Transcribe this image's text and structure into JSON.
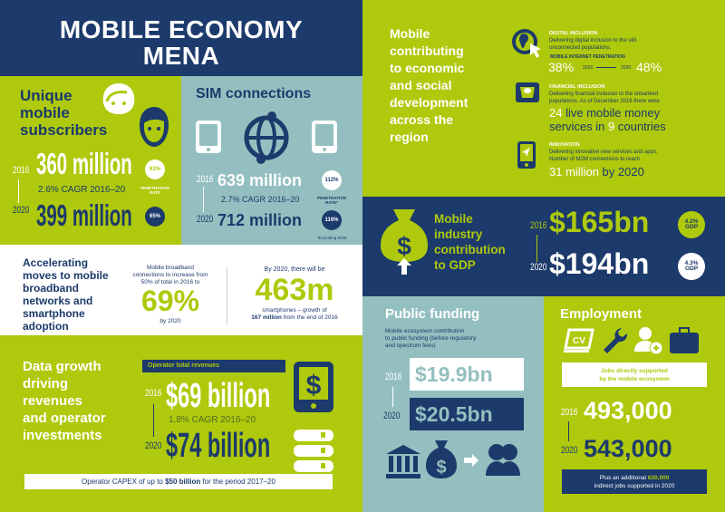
{
  "colors": {
    "navy": "#1c3a6b",
    "green": "#afc90c",
    "teal": "#94bfc0",
    "white": "#ffffff"
  },
  "title": {
    "line1": "MOBILE ECONOMY",
    "line2": "MENA"
  },
  "subscribers": {
    "heading": [
      "Unique",
      "mobile",
      "subscribers"
    ],
    "year1": "2016",
    "value1": "360 million",
    "cagr": "2.6% CAGR 2016–20",
    "year2": "2020",
    "value2": "399 million",
    "pen1": "63%",
    "pen2": "65%",
    "pen_label": [
      "PENETRATION",
      "RATE"
    ],
    "icons": [
      "woman-face-icon",
      "man-face-icon"
    ]
  },
  "sim": {
    "heading": "SIM connections",
    "year1": "2016",
    "value1": "639 million",
    "cagr": "2.7% CAGR 2016–20",
    "year2": "2020",
    "value2": "712 million",
    "pen1": "112%",
    "pen2": "116%",
    "pen_label": [
      "PENETRATION",
      "RATE*"
    ],
    "footnote": "*Excluding M2M",
    "icons": [
      "smartphone-icon",
      "globe-icon",
      "smartphone-icon"
    ]
  },
  "broadband": {
    "heading": [
      "Accelerating",
      "moves to mobile",
      "broadband",
      "networks and",
      "smartphone",
      "adoption"
    ],
    "mid_text": [
      "Mobile broadband",
      "connections to increase from",
      "50% of total in 2016 to"
    ],
    "mid_value": "69%",
    "mid_after": "by 2020",
    "right_before": "By 2020, there will be",
    "right_value": "463m",
    "right_after1": "smartphones – growth of",
    "right_bold": "167 million",
    "right_after2": " from the end of 2016"
  },
  "revenues": {
    "heading": [
      "Data growth",
      "driving",
      "revenues",
      "and operator",
      "investments"
    ],
    "bar_label": "Operator total revenues",
    "year1": "2016",
    "value1": "$69 billion",
    "cagr": "1.8% CAGR 2016–20",
    "year2": "2020",
    "value2": "$74 billion",
    "capex_before": "Operator CAPEX of up to ",
    "capex_bold": "$50 billion",
    "capex_after": " for the period 2017–20",
    "icons": [
      "dollar-phone-icon",
      "server-icon"
    ]
  },
  "development": {
    "heading": [
      "Mobile",
      "contributing",
      "to economic",
      "and social",
      "development",
      "across the",
      "region"
    ],
    "digital": {
      "title": "DIGITAL INCLUSION",
      "desc": [
        "Delivering digital inclusion to the still",
        "unconnected populations."
      ],
      "sub": "MOBILE INTERNET PENETRATION",
      "v1": "38%",
      "y1": "2016",
      "y2": "2020",
      "v2": "48%"
    },
    "financial": {
      "title": "FINANCIAL INCLUSION",
      "desc": [
        "Delivering financial inclusion to the unbanked",
        "populations. As of December 2016 there were"
      ],
      "n1": "24",
      "t1": " live mobile money",
      "t2": "services in ",
      "n2": "9",
      "t3": " countries"
    },
    "innovation": {
      "title": "INNOVATION",
      "desc": [
        "Delivering innovative new services and apps.",
        "Number of M2M connections to reach"
      ],
      "n": "31 million",
      "t": " by 2020"
    },
    "icons": [
      "globe-cursor-icon",
      "atm-cash-icon",
      "navigation-phone-icon"
    ]
  },
  "gdp": {
    "heading": [
      "Mobile",
      "industry",
      "contribution",
      "to GDP"
    ],
    "year1": "2016",
    "value1": "$165bn",
    "pct1": "4.2%",
    "year2": "2020",
    "value2": "$194bn",
    "pct2": "4.3%",
    "gdp_label": "GDP",
    "icon": "money-bag-up-icon"
  },
  "funding": {
    "heading": "Public funding",
    "desc": [
      "Mobile ecosystem contribution",
      "to public funding (before regulatory",
      "and spectrum fees)"
    ],
    "year1": "2016",
    "value1": "$19.9bn",
    "year2": "2020",
    "value2": "$20.5bn",
    "icons": [
      "bank-icon",
      "money-bag-icon",
      "arrow-right-icon",
      "people-icon"
    ]
  },
  "employment": {
    "heading": "Employment",
    "box": [
      "Jobs directly supported",
      "by the mobile ecosystem"
    ],
    "year1": "2016",
    "value1": "493,000",
    "year2": "2020",
    "value2": "543,000",
    "foot_before": "Plus an additional ",
    "foot_bold": "630,000",
    "foot_after": "indirect jobs supported in 2020",
    "icons": [
      "cv-laptop-icon",
      "wrench-icon",
      "add-person-icon",
      "briefcase-icon"
    ]
  }
}
